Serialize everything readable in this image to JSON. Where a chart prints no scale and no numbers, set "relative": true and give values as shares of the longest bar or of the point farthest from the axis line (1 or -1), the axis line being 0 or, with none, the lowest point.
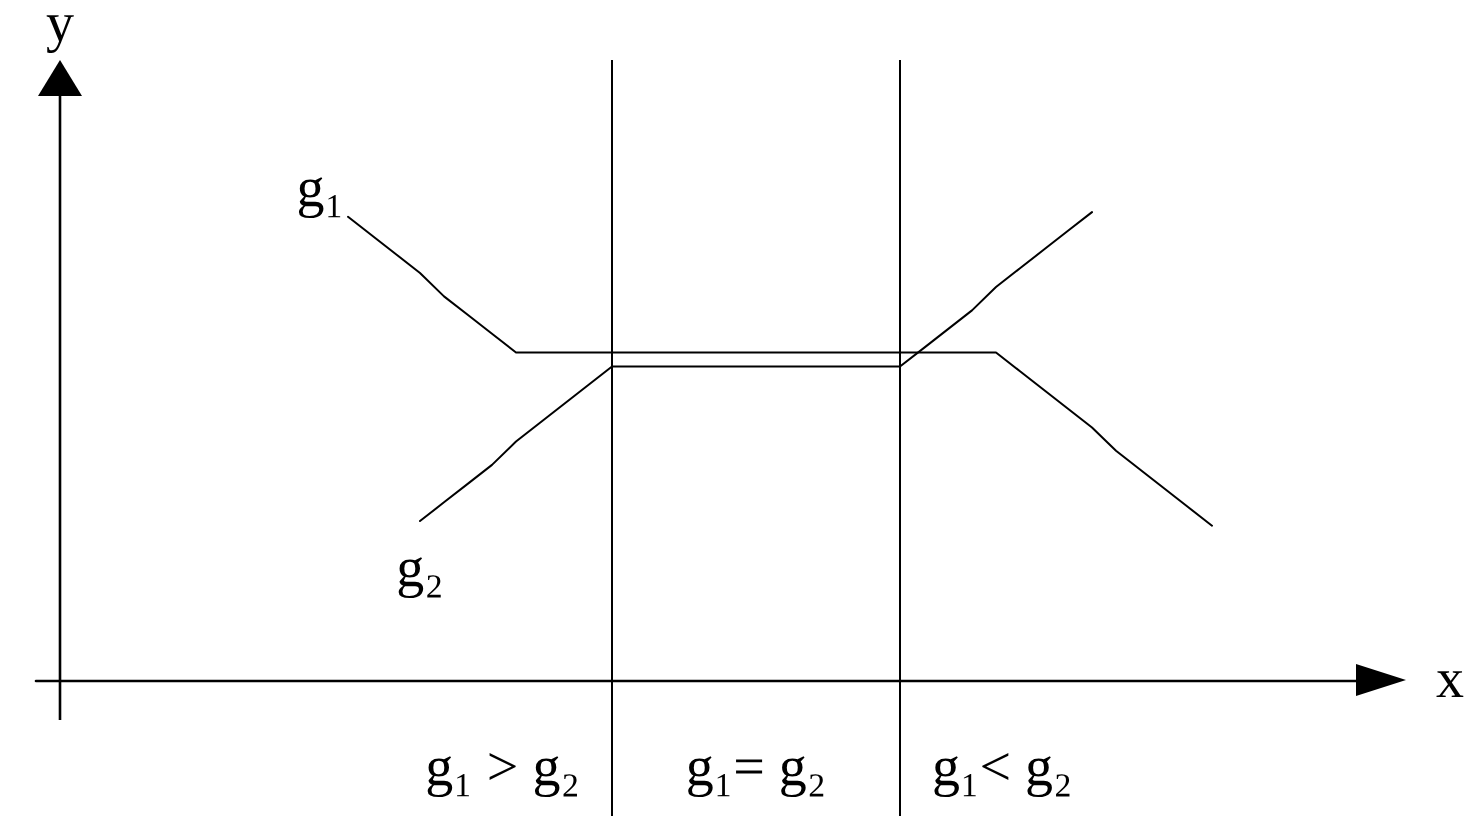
{
  "chart_data": {
    "type": "line",
    "xlabel": "x",
    "ylabel": "y",
    "relative": true,
    "tick_labels": false,
    "marker": "none",
    "line_style": "solid",
    "categories": [
      null,
      null,
      null,
      null,
      null,
      null,
      null,
      null,
      null,
      null,
      null,
      null,
      null,
      null,
      null,
      null,
      null,
      null,
      null,
      null,
      null,
      null,
      null,
      null,
      null,
      null,
      null,
      null,
      null,
      null,
      null,
      null,
      null,
      null,
      null,
      null,
      null,
      null,
      null,
      null,
      null,
      null,
      null,
      null,
      null,
      null,
      null,
      null,
      null,
      null,
      null,
      null,
      null,
      null,
      null,
      null
    ],
    "series": [
      {
        "name": "g₁",
        "color": "#000000",
        "values": [
          null,
          null,
          null,
          null,
          null,
          null,
          null,
          null,
          null,
          null,
          null,
          null,
          null,
          0.99,
          0.95,
          0.91,
          0.87,
          0.82,
          0.78,
          0.74,
          0.7,
          0.7,
          0.7,
          0.7,
          0.7,
          0.7,
          0.7,
          0.7,
          0.7,
          0.7,
          0.7,
          0.7,
          0.7,
          0.7,
          0.7,
          0.7,
          0.7,
          0.7,
          0.7,
          0.7,
          0.7,
          0.66,
          0.62,
          0.58,
          0.54,
          0.49,
          0.45,
          0.41,
          0.37,
          0.33,
          null,
          null,
          null,
          null,
          null,
          null
        ]
      },
      {
        "name": "g₂",
        "color": "#000000",
        "values": [
          null,
          null,
          null,
          null,
          null,
          null,
          null,
          null,
          null,
          null,
          null,
          null,
          null,
          null,
          null,
          null,
          0.34,
          0.38,
          0.42,
          0.46,
          0.51,
          0.55,
          0.59,
          0.63,
          0.67,
          0.67,
          0.67,
          0.67,
          0.67,
          0.67,
          0.67,
          0.67,
          0.67,
          0.67,
          0.67,
          0.67,
          0.67,
          0.71,
          0.75,
          0.79,
          0.84,
          0.88,
          0.92,
          0.96,
          1.0,
          null,
          null,
          null,
          null,
          null,
          null,
          null,
          null,
          null,
          null,
          null
        ]
      }
    ],
    "annotations": [
      "g₁ > g₂",
      "g₁= g₂",
      "g₁< g₂"
    ]
  }
}
